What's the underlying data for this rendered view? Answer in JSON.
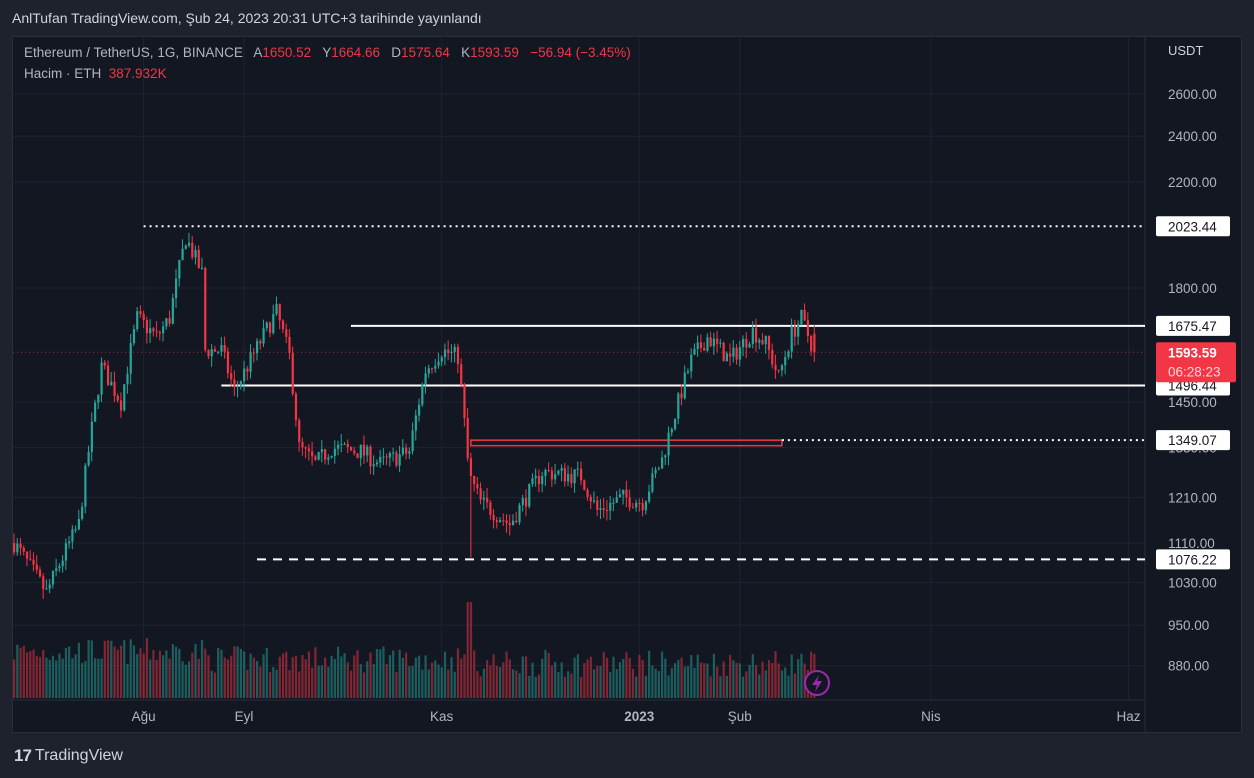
{
  "header": {
    "published": "AnlTufan TradingView.com, Şub 24, 2023 20:31 UTC+3 tarihinde yayınlandı"
  },
  "legend": {
    "symbol": "Ethereum / TetherUS, 1G, BINANCE",
    "open_label": "A",
    "open": "1650.52",
    "high_label": "Y",
    "high": "1664.66",
    "low_label": "D",
    "low": "1575.64",
    "close_label": "K",
    "close": "1593.59",
    "change": "−56.94 (−3.45%)",
    "volume_label": "Hacim · ETH",
    "volume": "387.932K"
  },
  "price_axis": {
    "unit": "USDT"
  },
  "footer": {
    "logo": "17",
    "brand": "TradingView"
  },
  "colors": {
    "up": "#26a69a",
    "down": "#f23645",
    "bg": "#131722",
    "frame": "#1e222d",
    "accent": "#9c27b0"
  },
  "chart_data": {
    "type": "candlestick",
    "title": "Ethereum / TetherUS, 1G, BINANCE",
    "scale": "log",
    "ylim": [
      860,
      2750
    ],
    "start_date": "2022-06-22",
    "end_day": 247,
    "price_ticks": [
      "2600.00",
      "2400.00",
      "2200.00",
      "1800.00",
      "1450.00",
      "1330.00",
      "1210.00",
      "1110.00",
      "1030.00",
      "950.00",
      "880.00"
    ],
    "time_labels": [
      {
        "label": "Ağu",
        "day": 40
      },
      {
        "label": "Eyl",
        "day": 71
      },
      {
        "label": "Kas",
        "day": 132
      },
      {
        "label": "2023",
        "day": 193,
        "bold": true
      },
      {
        "label": "Şub",
        "day": 224
      },
      {
        "label": "Nis",
        "day": 283
      },
      {
        "label": "Haz",
        "day": 344
      }
    ],
    "close_path": [
      [
        0,
        1110
      ],
      [
        10,
        1010
      ],
      [
        20,
        1150
      ],
      [
        27,
        1550
      ],
      [
        33,
        1450
      ],
      [
        38,
        1700
      ],
      [
        44,
        1640
      ],
      [
        48,
        1700
      ],
      [
        53,
        1980
      ],
      [
        58,
        1850
      ],
      [
        59,
        1600
      ],
      [
        64,
        1600
      ],
      [
        68,
        1480
      ],
      [
        73,
        1570
      ],
      [
        81,
        1720
      ],
      [
        85,
        1580
      ],
      [
        88,
        1330
      ],
      [
        93,
        1290
      ],
      [
        98,
        1330
      ],
      [
        107,
        1320
      ],
      [
        113,
        1290
      ],
      [
        122,
        1320
      ],
      [
        127,
        1540
      ],
      [
        132,
        1600
      ],
      [
        137,
        1580
      ],
      [
        140,
        1300
      ],
      [
        141,
        1250
      ],
      [
        144,
        1200
      ],
      [
        153,
        1150
      ],
      [
        163,
        1270
      ],
      [
        175,
        1260
      ],
      [
        180,
        1180
      ],
      [
        188,
        1210
      ],
      [
        194,
        1200
      ],
      [
        200,
        1300
      ],
      [
        204,
        1420
      ],
      [
        209,
        1570
      ],
      [
        214,
        1640
      ],
      [
        221,
        1570
      ],
      [
        228,
        1660
      ],
      [
        232,
        1620
      ],
      [
        236,
        1520
      ],
      [
        240,
        1650
      ],
      [
        243,
        1700
      ],
      [
        247,
        1593.59
      ]
    ],
    "levels": [
      {
        "value": 2023.44,
        "label": "2023.44",
        "style": "dotted",
        "from_day": 40
      },
      {
        "value": 1675.47,
        "label": "1675.47",
        "style": "solid",
        "from_day": 104
      },
      {
        "value": 1496.44,
        "label": "1496.44",
        "style": "solid",
        "from_day": 64
      },
      {
        "value": 1349.07,
        "label": "1349.07",
        "style": "dotted",
        "from_day": 237
      },
      {
        "value": 1076.22,
        "label": "1076.22",
        "style": "dashed",
        "from_day": 75
      }
    ],
    "zone": {
      "from_day": 141,
      "to_day": 237,
      "top": 1349.07,
      "bottom": 1335
    },
    "last_price": {
      "value": 1593.59,
      "label": "1593.59",
      "countdown": "06:28:23"
    },
    "volume_spike_day": 140
  }
}
